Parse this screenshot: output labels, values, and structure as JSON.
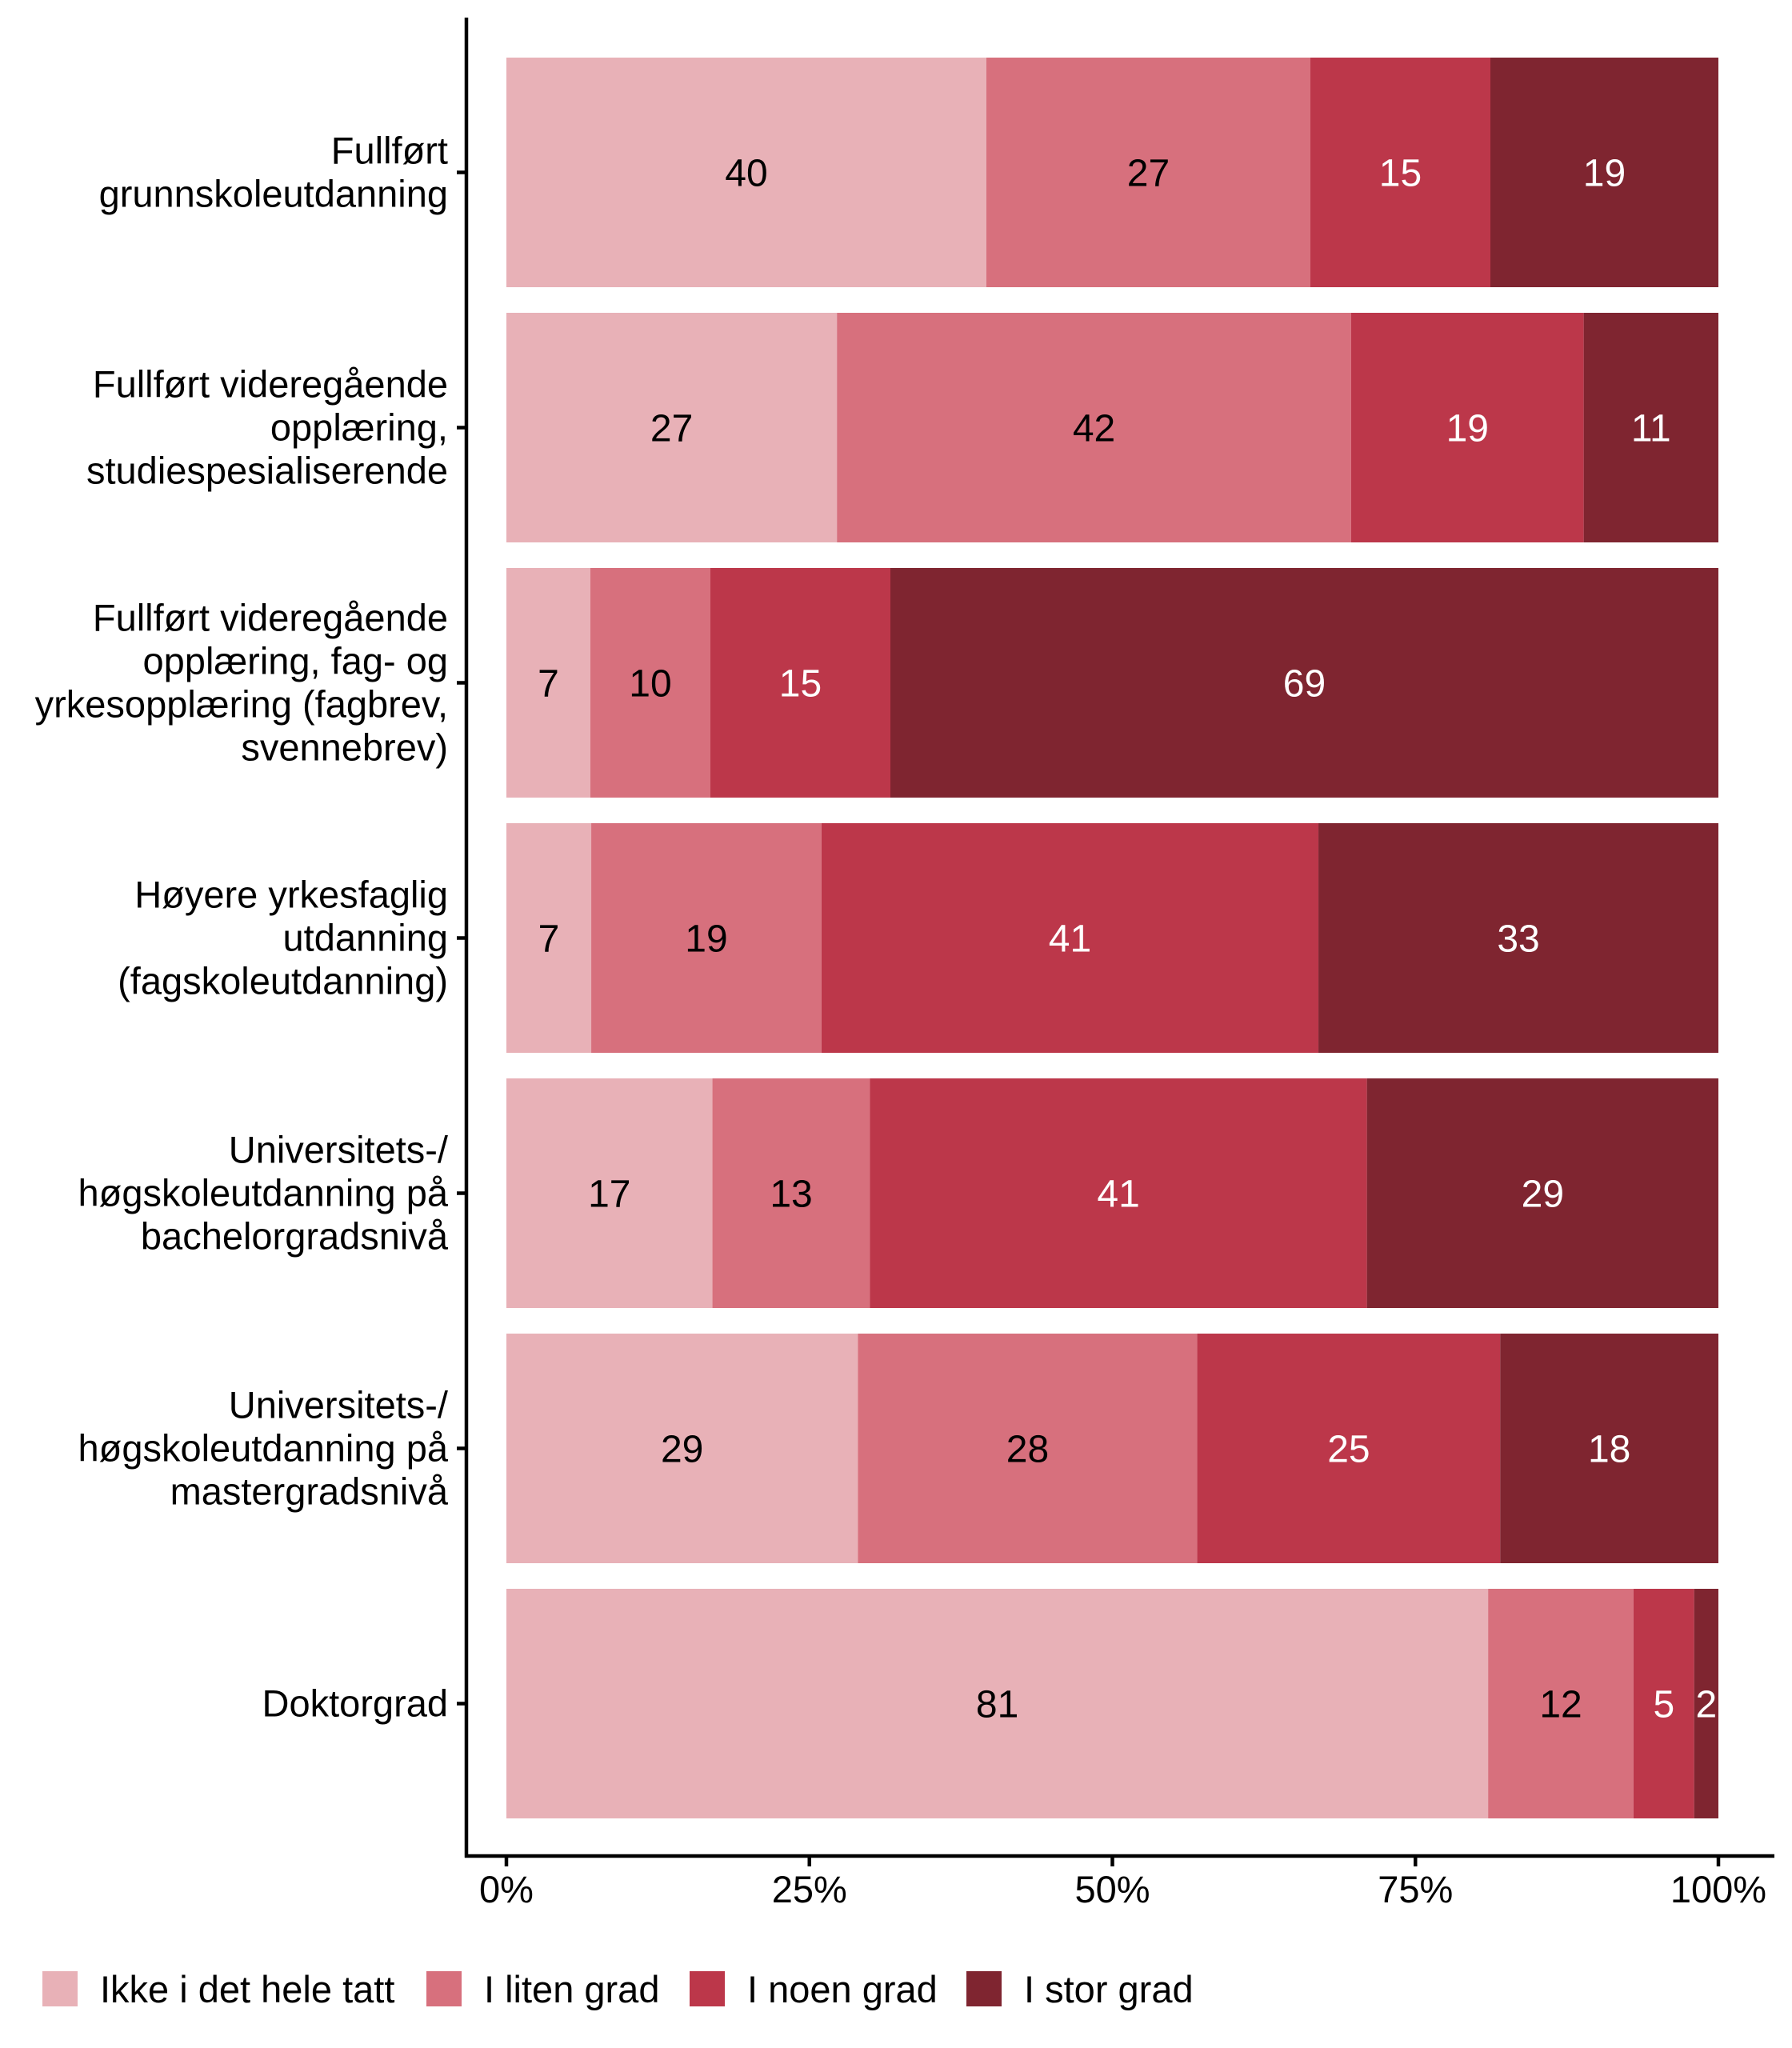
{
  "chart_data": {
    "type": "bar",
    "orientation": "horizontal",
    "stacked": "percent",
    "title": "",
    "xlabel": "",
    "ylabel": "",
    "xlim": [
      0,
      100
    ],
    "x_ticks": [
      "0%",
      "25%",
      "50%",
      "75%",
      "100%"
    ],
    "x_tick_values": [
      0,
      25,
      50,
      75,
      100
    ],
    "grid": false,
    "legend_position": "bottom",
    "categories": [
      [
        "Fullført",
        "grunnskoleutdanning"
      ],
      [
        "Fullført videregående",
        "opplæring,",
        "studiespesialiserende"
      ],
      [
        "Fullført videregående",
        "opplæring, fag- og",
        "yrkesopplæring (fagbrev,",
        "svennebrev)"
      ],
      [
        "Høyere yrkesfaglig",
        "utdanning",
        "(fagskoleutdanning)"
      ],
      [
        "Universitets-/",
        "høgskoleutdanning på",
        "bachelorgradsnivå"
      ],
      [
        "Universitets-/",
        "høgskoleutdanning på",
        "mastergradsnivå"
      ],
      [
        "Doktorgrad"
      ]
    ],
    "series": [
      {
        "name": "Ikke i det hele tatt",
        "color": "#E8B1B7",
        "label_color": "#000000",
        "values": [
          40,
          27,
          7,
          7,
          17,
          29,
          81
        ]
      },
      {
        "name": "I liten grad",
        "color": "#D7707D",
        "label_color": "#000000",
        "values": [
          27,
          42,
          10,
          19,
          13,
          28,
          12
        ]
      },
      {
        "name": "I noen grad",
        "color": "#BC374A",
        "label_color": "#FFFFFF",
        "values": [
          15,
          19,
          15,
          41,
          41,
          25,
          5
        ]
      },
      {
        "name": "I stor grad",
        "color": "#7F2530",
        "label_color": "#FFFFFF",
        "values": [
          19,
          11,
          69,
          33,
          29,
          18,
          2
        ]
      }
    ]
  }
}
